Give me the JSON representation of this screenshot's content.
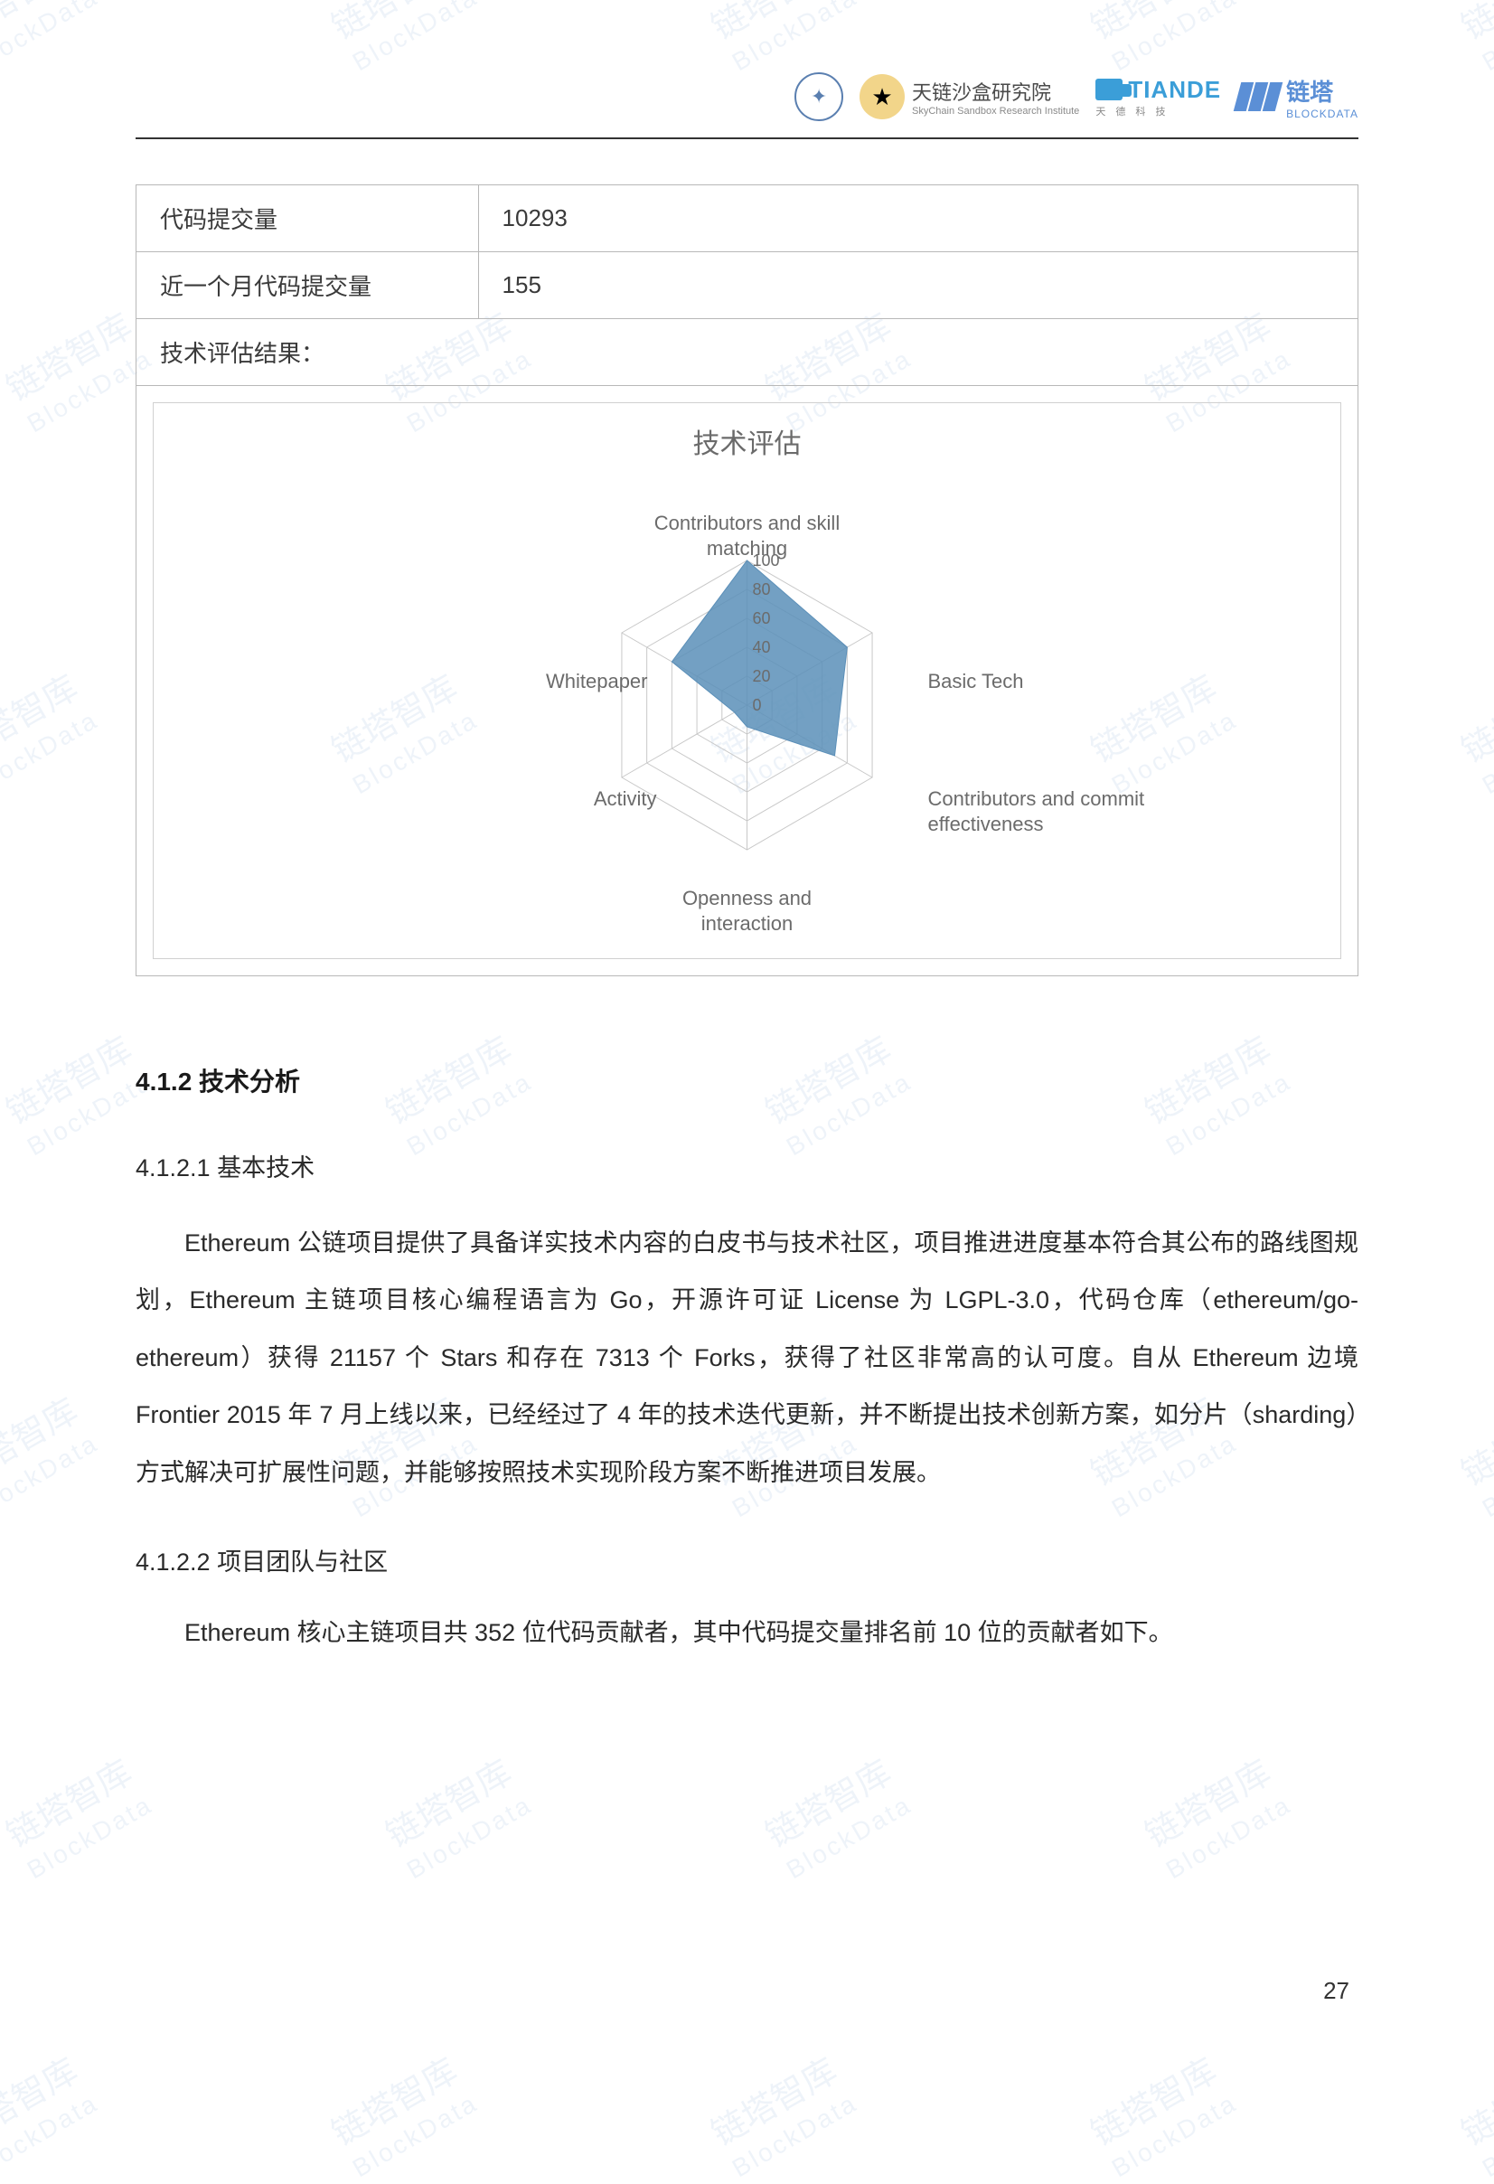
{
  "header": {
    "org1_cn": "天链沙盒研究院",
    "org1_en": "SkyChain Sandbox Research Institute",
    "tiande": "TIANDE",
    "tiande_sub": "天 德 科 技",
    "blockdata_cn": "链塔",
    "blockdata_en": "BLOCKDATA"
  },
  "table": {
    "rows": [
      {
        "label": "代码提交量",
        "value": "10293"
      },
      {
        "label": "近一个月代码提交量",
        "value": "155"
      }
    ],
    "result_label": "技术评估结果："
  },
  "radar": {
    "title": "技术评估",
    "axes": [
      "Contributors and skill matching",
      "Basic Tech",
      "Contributors and commit effectiveness",
      "Openness and interaction",
      "Activity",
      "Whitepaper"
    ],
    "values": [
      100,
      80,
      70,
      15,
      10,
      60
    ],
    "max": 100,
    "ticks": [
      0,
      20,
      40,
      60,
      80,
      100
    ],
    "fill_color": "#5b8fb8",
    "fill_opacity": 0.85,
    "grid_color": "#c8c8c8",
    "label_color": "#6b6b6b",
    "label_fontsize": 22,
    "tick_fontsize": 18,
    "background_color": "#ffffff"
  },
  "sections": {
    "h412": "4.1.2 技术分析",
    "h4121": "4.1.2.1 基本技术",
    "p4121": "Ethereum 公链项目提供了具备详实技术内容的白皮书与技术社区，项目推进进度基本符合其公布的路线图规划，Ethereum 主链项目核心编程语言为 Go，开源许可证 License 为 LGPL-3.0，代码仓库（ethereum/go-ethereum）获得 21157 个 Stars 和存在 7313 个 Forks，获得了社区非常高的认可度。自从 Ethereum 边境 Frontier 2015 年 7 月上线以来，已经经过了 4 年的技术迭代更新，并不断提出技术创新方案，如分片（sharding）方式解决可扩展性问题，并能够按照技术实现阶段方案不断推进项目发展。",
    "h4122": "4.1.2.2 项目团队与社区",
    "p4122": "Ethereum 核心主链项目共 352 位代码贡献者，其中代码提交量排名前 10 位的贡献者如下。"
  },
  "watermark": {
    "line1": "链塔智库",
    "line2": "BlockData"
  },
  "page_number": "27"
}
